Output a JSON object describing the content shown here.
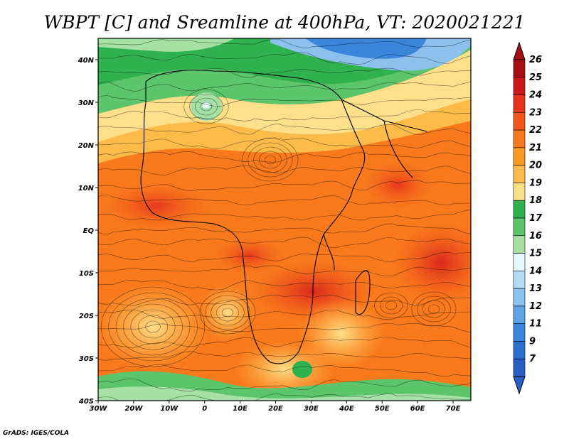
{
  "title": "WBPT [C] and Sreamline at 400hPa, VT: 2020021221",
  "credit": "GrADS: IGES/COLA",
  "map": {
    "lon_range": [
      -30,
      75
    ],
    "lat_range": [
      -40,
      45
    ],
    "lon_ticks": [
      {
        "value": -30,
        "label": "30W"
      },
      {
        "value": -20,
        "label": "20W"
      },
      {
        "value": -10,
        "label": "10W"
      },
      {
        "value": 0,
        "label": "0"
      },
      {
        "value": 10,
        "label": "10E"
      },
      {
        "value": 20,
        "label": "20E"
      },
      {
        "value": 30,
        "label": "30E"
      },
      {
        "value": 40,
        "label": "40E"
      },
      {
        "value": 50,
        "label": "50E"
      },
      {
        "value": 60,
        "label": "60E"
      },
      {
        "value": 70,
        "label": "70E"
      }
    ],
    "lat_ticks": [
      {
        "value": 40,
        "label": "40N"
      },
      {
        "value": 30,
        "label": "30N"
      },
      {
        "value": 20,
        "label": "20N"
      },
      {
        "value": 10,
        "label": "10N"
      },
      {
        "value": 0,
        "label": "EQ"
      },
      {
        "value": -10,
        "label": "10S"
      },
      {
        "value": -20,
        "label": "20S"
      },
      {
        "value": -30,
        "label": "30S"
      },
      {
        "value": -40,
        "label": "40S"
      }
    ]
  },
  "colorbar": {
    "levels": [
      {
        "label": "26",
        "color": "#a50f15"
      },
      {
        "label": "25",
        "color": "#cb181d"
      },
      {
        "label": "24",
        "color": "#e6331c"
      },
      {
        "label": "23",
        "color": "#f4571e"
      },
      {
        "label": "22",
        "color": "#f97a1c"
      },
      {
        "label": "21",
        "color": "#fb9b24"
      },
      {
        "label": "20",
        "color": "#fdbb4a"
      },
      {
        "label": "19",
        "color": "#fee08b"
      },
      {
        "label": "18",
        "color": "#2fb14f"
      },
      {
        "label": "17",
        "color": "#5cc46a"
      },
      {
        "label": "16",
        "color": "#a6e0a5"
      },
      {
        "label": "15",
        "color": "#e8f8ff"
      },
      {
        "label": "14",
        "color": "#b7dcf7"
      },
      {
        "label": "13",
        "color": "#8cc1ee"
      },
      {
        "label": "12",
        "color": "#5ea3e6"
      },
      {
        "label": "11",
        "color": "#3b86da"
      },
      {
        "label": "9",
        "color": "#2c6fcf"
      },
      {
        "label": "7",
        "color": "#2a5ec4"
      }
    ]
  }
}
